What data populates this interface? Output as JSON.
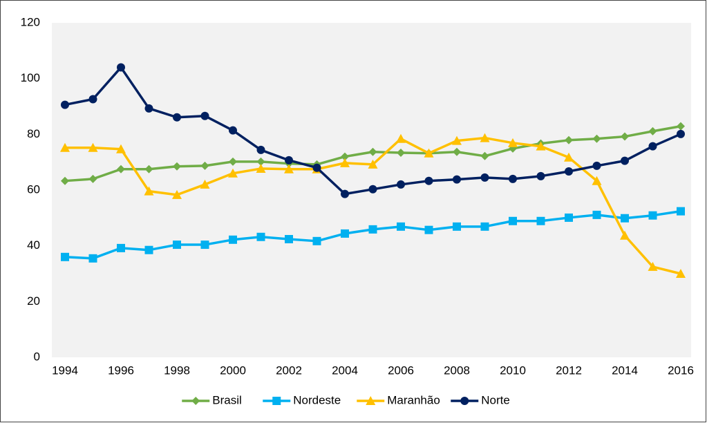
{
  "chart_data": {
    "type": "line",
    "x": [
      1994,
      1995,
      1996,
      1997,
      1998,
      1999,
      2000,
      2001,
      2002,
      2003,
      2004,
      2005,
      2006,
      2007,
      2008,
      2009,
      2010,
      2011,
      2012,
      2013,
      2014,
      2015,
      2016
    ],
    "xlim": [
      1994,
      2016
    ],
    "xticks": [
      1994,
      1996,
      1998,
      2000,
      2002,
      2004,
      2006,
      2008,
      2010,
      2012,
      2014,
      2016
    ],
    "ylim": [
      0,
      120
    ],
    "yticks": [
      0,
      20,
      40,
      60,
      80,
      100,
      120
    ],
    "legend": "bottom",
    "series": [
      {
        "name": "Brasil",
        "color": "#70ad47",
        "marker": "diamond",
        "values": [
          63.3,
          64,
          67.5,
          67.5,
          68.5,
          68.7,
          70.2,
          70.2,
          69.5,
          69.2,
          72,
          73.7,
          73.4,
          73.2,
          73.7,
          72.2,
          74.9,
          76.7,
          77.9,
          78.4,
          79.2,
          81.1,
          82.9
        ]
      },
      {
        "name": "Nordeste",
        "color": "#00b0f0",
        "marker": "square",
        "values": [
          36,
          35.5,
          39.2,
          38.5,
          40.4,
          40.4,
          42.2,
          43.2,
          42.4,
          41.7,
          44.4,
          45.9,
          46.9,
          45.7,
          46.9,
          46.9,
          48.9,
          48.9,
          50.1,
          51.1,
          49.9,
          50.9,
          52.4
        ]
      },
      {
        "name": "Maranhão",
        "color": "#ffc000",
        "marker": "triangle",
        "values": [
          75.2,
          75.2,
          74.7,
          59.6,
          58.3,
          62,
          66,
          67.7,
          67.5,
          67.5,
          69.7,
          69.2,
          78.4,
          73.2,
          77.7,
          78.7,
          76.9,
          75.7,
          71.7,
          63.3,
          43.7,
          32.5,
          30
        ]
      },
      {
        "name": "Norte",
        "color": "#002060",
        "marker": "circle",
        "values": [
          90.6,
          92.6,
          104,
          89.3,
          86.1,
          86.6,
          81.4,
          74.4,
          70.7,
          68,
          58.6,
          60.3,
          62,
          63.3,
          63.8,
          64.5,
          64,
          65,
          66.7,
          68.7,
          70.5,
          75.7,
          80.1
        ]
      }
    ]
  }
}
